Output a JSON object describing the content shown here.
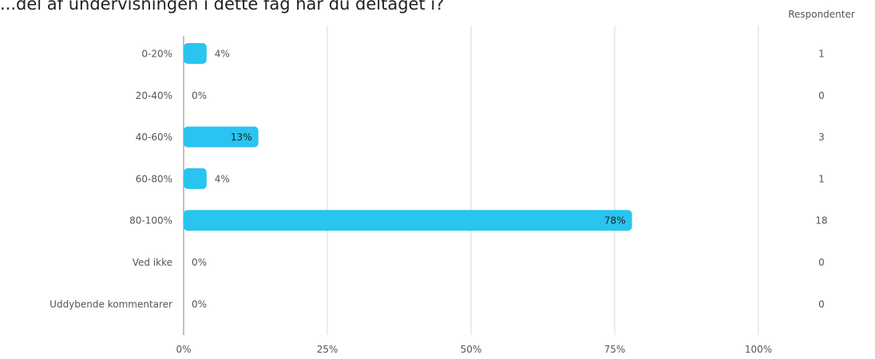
{
  "question": "...del af undervisningen i dette fag har du deltaget i?",
  "respondents_header": "Respondenter",
  "colors": {
    "bar": "#29c4f0",
    "grid": "#d9d9d9",
    "axis": "#999999",
    "text": "#555555",
    "bar_label_inside": "#222222"
  },
  "chart_data": {
    "type": "bar",
    "orientation": "horizontal",
    "categories": [
      "0-20%",
      "20-40%",
      "40-60%",
      "60-80%",
      "80-100%",
      "Ved ikke",
      "Uddybende kommentarer"
    ],
    "values": [
      4,
      0,
      13,
      4,
      78,
      0,
      0
    ],
    "value_labels": [
      "4%",
      "0%",
      "13%",
      "4%",
      "78%",
      "0%",
      "0%"
    ],
    "respondents": [
      "1",
      "0",
      "3",
      "1",
      "18",
      "0",
      "0"
    ],
    "xticks": [
      "0%",
      "25%",
      "50%",
      "75%",
      "100%"
    ],
    "xlim": [
      0,
      100
    ],
    "grid": true,
    "title": "",
    "xlabel": "",
    "ylabel": ""
  }
}
